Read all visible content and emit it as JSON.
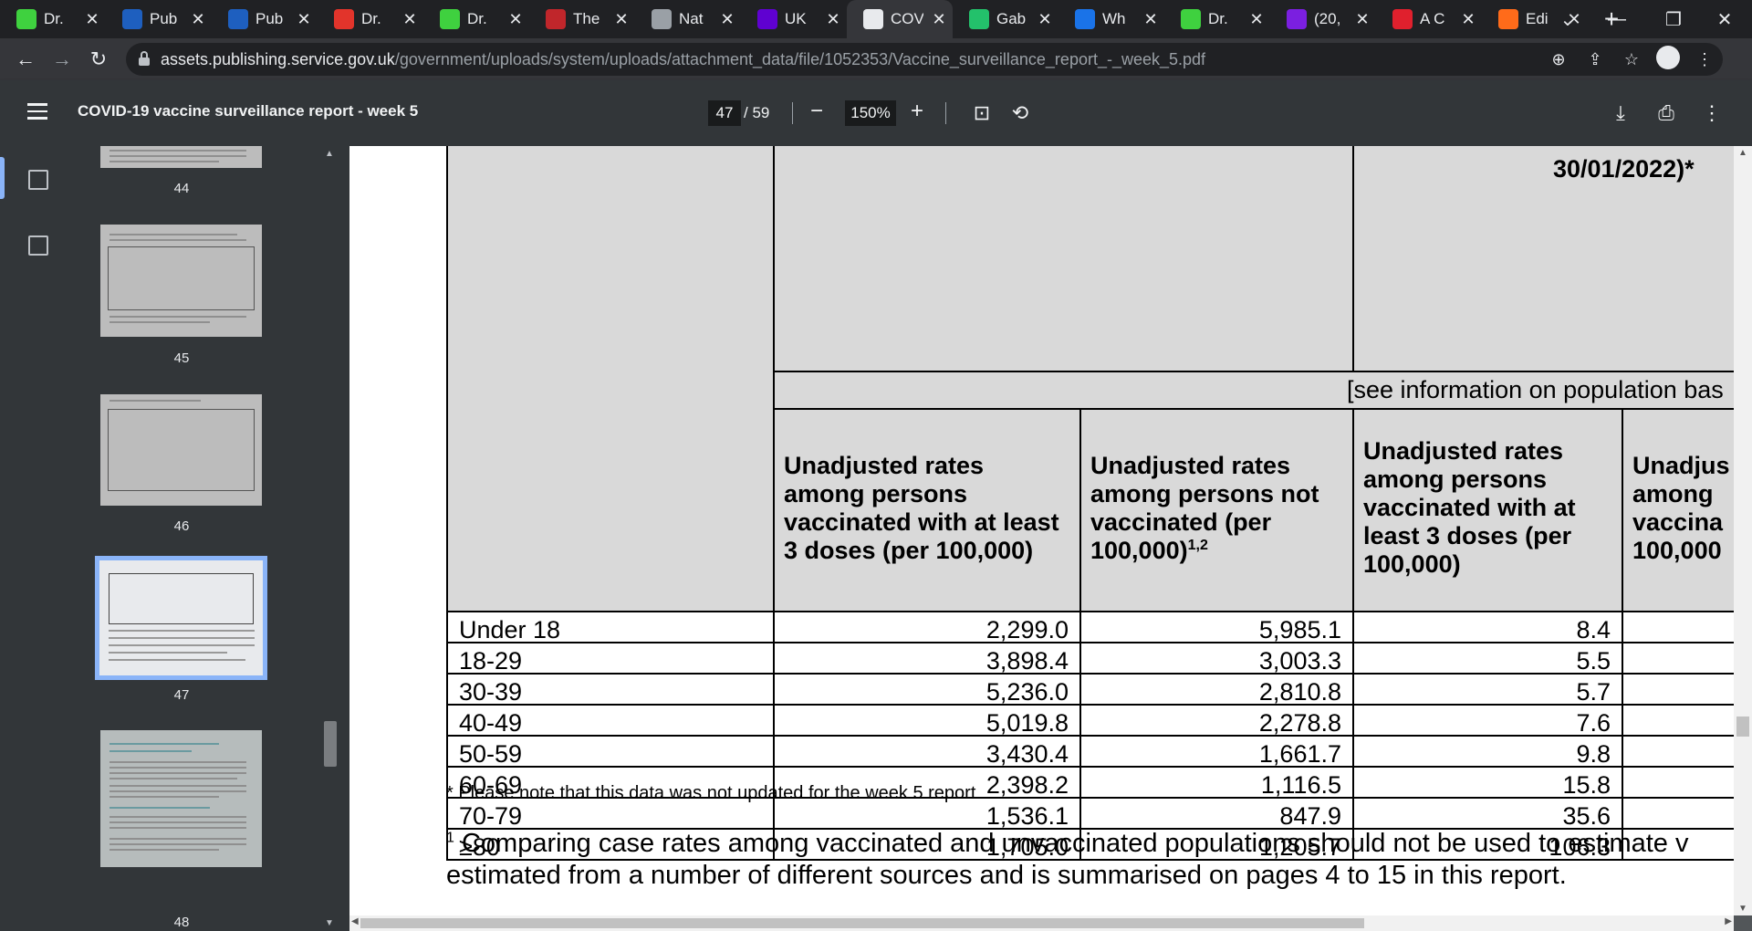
{
  "browser": {
    "tabs": [
      {
        "icon": "play-circle-icon",
        "title": "Dr.",
        "color": "#3fd13f",
        "active": false
      },
      {
        "icon": "health-pubmed-icon",
        "title": "Pub",
        "color": "#1e5fbf",
        "active": false
      },
      {
        "icon": "health-pubmed-icon",
        "title": "Pub",
        "color": "#1e5fbf",
        "active": false
      },
      {
        "icon": "brand-icon",
        "title": "Dr.",
        "color": "#e2342b",
        "active": false
      },
      {
        "icon": "play-circle-icon",
        "title": "Dr.",
        "color": "#3fd13f",
        "active": false
      },
      {
        "icon": "bi-icon",
        "title": "The",
        "color": "#c0262b",
        "active": false
      },
      {
        "icon": "globe-icon",
        "title": "Nat",
        "color": "#9aa0a6",
        "active": false
      },
      {
        "icon": "yahoo-icon",
        "title": "UK",
        "color": "#5f01d1",
        "active": false
      },
      {
        "icon": "crown-icon",
        "title": "COV",
        "color": "#e8eaed",
        "active": true
      },
      {
        "icon": "g-icon",
        "title": "Gab",
        "color": "#23c16b",
        "active": false
      },
      {
        "icon": "a-letter-icon",
        "title": "Wh",
        "color": "#1a73e8",
        "active": false
      },
      {
        "icon": "play-circle-icon",
        "title": "Dr.",
        "color": "#3fd13f",
        "active": false
      },
      {
        "icon": "mail-icon",
        "title": "(20,",
        "color": "#7b1fe0",
        "active": false
      },
      {
        "icon": "acl-icon",
        "title": "A C",
        "color": "#e0202d",
        "active": false
      },
      {
        "icon": "bookmark-icon",
        "title": "Edi",
        "color": "#ff6b1a",
        "active": false
      }
    ],
    "url_host": "assets.publishing.service.gov.uk",
    "url_path": "/government/uploads/system/uploads/attachment_data/file/1052353/Vaccine_surveillance_report_-_week_5.pdf"
  },
  "pdf": {
    "title": "COVID-19 vaccine surveillance report - week 5",
    "current_page": "47",
    "page_count": "/ 59",
    "zoom": "150%"
  },
  "thumbnails": [
    {
      "page": "44"
    },
    {
      "page": "45"
    },
    {
      "page": "46"
    },
    {
      "page": "47",
      "selected": true
    },
    {
      "page": "48"
    }
  ],
  "doc": {
    "top_header_fragment": "30/01/2022)*",
    "population_note": "[see information on population bas",
    "columns": [
      "Unadjusted rates among persons vaccinated with at least 3 doses (per 100,000)",
      "Unadjusted rates among persons not vaccinated (per 100,000)",
      "Unadjusted rates among persons vaccinated with at least 3 doses (per 100,000)",
      "Unadjus among vaccina 100,000"
    ],
    "col2_sup": "1,2",
    "rows": [
      {
        "age": "Under 18",
        "a": "2,299.0",
        "b": "5,985.1",
        "c": "8.4"
      },
      {
        "age": "18-29",
        "a": "3,898.4",
        "b": "3,003.3",
        "c": "5.5"
      },
      {
        "age": "30-39",
        "a": "5,236.0",
        "b": "2,810.8",
        "c": "5.7"
      },
      {
        "age": "40-49",
        "a": "5,019.8",
        "b": "2,278.8",
        "c": "7.6"
      },
      {
        "age": "50-59",
        "a": "3,430.4",
        "b": "1,661.7",
        "c": "9.8"
      },
      {
        "age": "60-69",
        "a": "2,398.2",
        "b": "1,116.5",
        "c": "15.8"
      },
      {
        "age": "70-79",
        "a": "1,536.1",
        "b": "847.9",
        "c": "35.6"
      },
      {
        "age": "≥80",
        "a": "1,705.0",
        "b": "1,205.7",
        "c": "106.3"
      }
    ],
    "note_star": "* Please note that this data was not updated for the week 5 report",
    "footnote_num": "1",
    "footnote_line1": "Comparing case rates among vaccinated and unvaccinated populations should not be used to estimate v",
    "footnote_line2": "estimated from a number of different sources and is summarised on pages 4 to 15 in this report."
  }
}
